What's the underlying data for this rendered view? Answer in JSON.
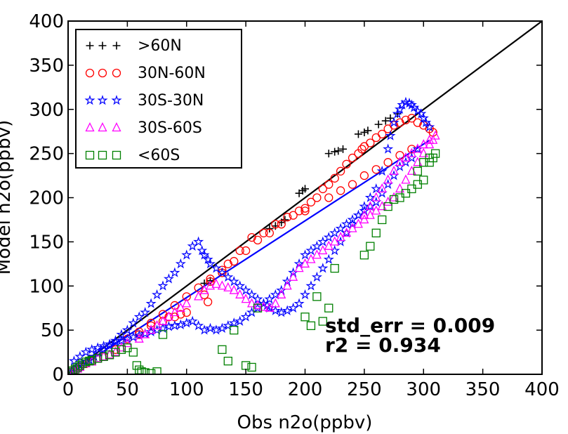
{
  "chart_data": {
    "type": "scatter",
    "xlabel": "Obs n2o(ppbv)",
    "ylabel": "Model n2o(ppbv)",
    "xlim": [
      0,
      400
    ],
    "ylim": [
      0,
      400
    ],
    "x_ticks": [
      "0",
      "50",
      "100",
      "150",
      "200",
      "250",
      "300",
      "350",
      "400"
    ],
    "y_ticks": [
      "0",
      "50",
      "100",
      "150",
      "200",
      "250",
      "300",
      "350",
      "400"
    ],
    "grid": false,
    "legend_position": "top-left",
    "annotations": [
      "std_err = 0.009",
      "r2 = 0.934"
    ],
    "lines": [
      {
        "name": "1:1",
        "color": "#000000",
        "x": [
          0,
          400
        ],
        "y": [
          0,
          400
        ]
      },
      {
        "name": "fit",
        "color": "#0000ff",
        "x": [
          0,
          305
        ],
        "y": [
          0,
          265
        ]
      }
    ],
    "series": [
      {
        "name": ">60N",
        "marker": "plus",
        "color": "#000000",
        "x": [
          2,
          5,
          8,
          12,
          15,
          18,
          115,
          120,
          170,
          175,
          180,
          183,
          195,
          198,
          200,
          220,
          225,
          228,
          232,
          245,
          250,
          253,
          262,
          268,
          272,
          278
        ],
        "y": [
          2,
          5,
          8,
          12,
          15,
          18,
          103,
          106,
          165,
          168,
          172,
          175,
          205,
          208,
          210,
          250,
          252,
          253,
          255,
          272,
          274,
          276,
          283,
          287,
          290,
          295
        ]
      },
      {
        "name": "30N-60N",
        "marker": "circle",
        "color": "#ff0000",
        "x": [
          5,
          10,
          15,
          20,
          30,
          40,
          60,
          70,
          80,
          85,
          90,
          95,
          100,
          115,
          118,
          120,
          130,
          135,
          145,
          155,
          165,
          175,
          185,
          195,
          200,
          205,
          210,
          215,
          220,
          225,
          230,
          235,
          240,
          245,
          248,
          250,
          255,
          260,
          265,
          270,
          275,
          280,
          285,
          290,
          295,
          300,
          305,
          308,
          220,
          230,
          240,
          250,
          260,
          270,
          280,
          290,
          200,
          190,
          180,
          170,
          160,
          150,
          140,
          130,
          120,
          110,
          100,
          90,
          80,
          70,
          60,
          50
        ],
        "y": [
          5,
          8,
          12,
          15,
          20,
          28,
          45,
          55,
          60,
          65,
          65,
          68,
          70,
          90,
          82,
          105,
          115,
          125,
          140,
          155,
          160,
          170,
          178,
          185,
          188,
          195,
          200,
          210,
          215,
          222,
          230,
          238,
          245,
          250,
          255,
          258,
          262,
          268,
          272,
          278,
          282,
          285,
          288,
          290,
          285,
          282,
          278,
          274,
          200,
          208,
          215,
          225,
          232,
          240,
          248,
          255,
          185,
          180,
          170,
          160,
          152,
          140,
          128,
          118,
          108,
          98,
          88,
          78,
          68,
          58,
          48,
          40
        ]
      },
      {
        "name": "30S-30N",
        "marker": "star",
        "color": "#0000ff",
        "x": [
          2,
          4,
          6,
          8,
          10,
          12,
          15,
          18,
          22,
          26,
          30,
          35,
          40,
          45,
          50,
          55,
          60,
          65,
          70,
          75,
          80,
          85,
          90,
          95,
          100,
          105,
          110,
          113,
          115,
          118,
          120,
          125,
          130,
          135,
          140,
          145,
          150,
          155,
          160,
          165,
          168,
          170,
          175,
          180,
          185,
          190,
          195,
          200,
          205,
          210,
          215,
          220,
          225,
          230,
          235,
          240,
          245,
          250,
          255,
          260,
          265,
          270,
          272,
          275,
          278,
          280,
          282,
          285,
          288,
          290,
          292,
          295,
          298,
          300,
          302,
          305,
          295,
          290,
          285,
          280,
          275,
          270,
          265,
          260,
          255,
          250,
          245,
          240,
          235,
          230,
          225,
          220,
          215,
          210,
          205,
          200,
          195,
          190,
          185,
          180,
          175,
          170,
          165,
          160,
          155,
          150,
          145,
          140,
          135,
          130,
          125,
          120,
          115,
          110,
          105,
          100,
          95,
          90,
          85,
          80,
          75,
          70,
          65,
          60,
          55,
          50,
          45,
          40,
          35,
          30,
          25,
          20,
          15,
          10,
          5
        ],
        "y": [
          2,
          4,
          6,
          8,
          10,
          12,
          14,
          16,
          20,
          24,
          28,
          32,
          38,
          45,
          50,
          58,
          65,
          70,
          80,
          90,
          100,
          108,
          115,
          125,
          135,
          145,
          150,
          140,
          135,
          130,
          125,
          120,
          115,
          110,
          105,
          100,
          95,
          90,
          85,
          80,
          78,
          75,
          72,
          70,
          72,
          75,
          80,
          90,
          100,
          110,
          120,
          130,
          140,
          150,
          160,
          170,
          180,
          190,
          200,
          210,
          230,
          255,
          270,
          285,
          295,
          300,
          305,
          308,
          307,
          305,
          302,
          298,
          295,
          290,
          285,
          280,
          255,
          245,
          240,
          235,
          225,
          215,
          205,
          195,
          190,
          185,
          180,
          175,
          170,
          165,
          160,
          155,
          150,
          145,
          140,
          135,
          125,
          115,
          105,
          95,
          90,
          85,
          80,
          75,
          70,
          65,
          60,
          58,
          55,
          52,
          50,
          52,
          50,
          55,
          60,
          58,
          56,
          55,
          54,
          52,
          50,
          48,
          46,
          44,
          42,
          40,
          38,
          36,
          34,
          32,
          30,
          28,
          25,
          20,
          15
        ]
      },
      {
        "name": "30S-60S",
        "marker": "triangle",
        "color": "#ff00ff",
        "x": [
          2,
          5,
          8,
          10,
          15,
          20,
          25,
          30,
          35,
          40,
          45,
          50,
          60,
          65,
          70,
          75,
          80,
          85,
          90,
          95,
          100,
          110,
          115,
          120,
          125,
          130,
          135,
          140,
          145,
          150,
          155,
          160,
          165,
          170,
          175,
          180,
          185,
          190,
          195,
          200,
          205,
          210,
          215,
          220,
          225,
          230,
          235,
          240,
          245,
          250,
          255,
          260,
          265,
          270,
          275,
          280,
          285,
          290,
          295,
          300,
          305,
          308,
          310,
          305,
          300,
          295,
          290,
          285,
          280,
          275,
          270,
          265,
          260,
          255,
          250
        ],
        "y": [
          2,
          4,
          6,
          8,
          12,
          14,
          18,
          20,
          22,
          25,
          30,
          35,
          40,
          45,
          50,
          55,
          60,
          65,
          70,
          75,
          80,
          88,
          95,
          100,
          102,
          100,
          98,
          95,
          90,
          85,
          80,
          78,
          76,
          75,
          80,
          90,
          100,
          110,
          120,
          125,
          130,
          135,
          140,
          145,
          150,
          155,
          160,
          165,
          170,
          175,
          180,
          185,
          190,
          195,
          200,
          210,
          220,
          230,
          240,
          250,
          260,
          265,
          270,
          265,
          260,
          255,
          250,
          245,
          240,
          230,
          220,
          210,
          200,
          190,
          180
        ]
      },
      {
        "name": "<60S",
        "marker": "square",
        "color": "#008000",
        "x": [
          2,
          4,
          6,
          8,
          10,
          12,
          15,
          18,
          20,
          25,
          30,
          35,
          40,
          45,
          50,
          55,
          58,
          60,
          62,
          65,
          70,
          75,
          80,
          130,
          135,
          140,
          150,
          155,
          160,
          200,
          205,
          210,
          215,
          220,
          225,
          250,
          255,
          260,
          265,
          270,
          275,
          280,
          285,
          290,
          295,
          300,
          305,
          308,
          310,
          305,
          300,
          295
        ],
        "y": [
          2,
          4,
          6,
          8,
          10,
          12,
          14,
          15,
          16,
          18,
          20,
          22,
          25,
          28,
          30,
          25,
          10,
          5,
          3,
          2,
          1,
          3,
          45,
          28,
          15,
          50,
          10,
          8,
          75,
          65,
          55,
          88,
          60,
          75,
          120,
          135,
          145,
          160,
          175,
          190,
          198,
          200,
          205,
          210,
          215,
          220,
          240,
          245,
          250,
          245,
          240,
          230
        ]
      }
    ]
  }
}
